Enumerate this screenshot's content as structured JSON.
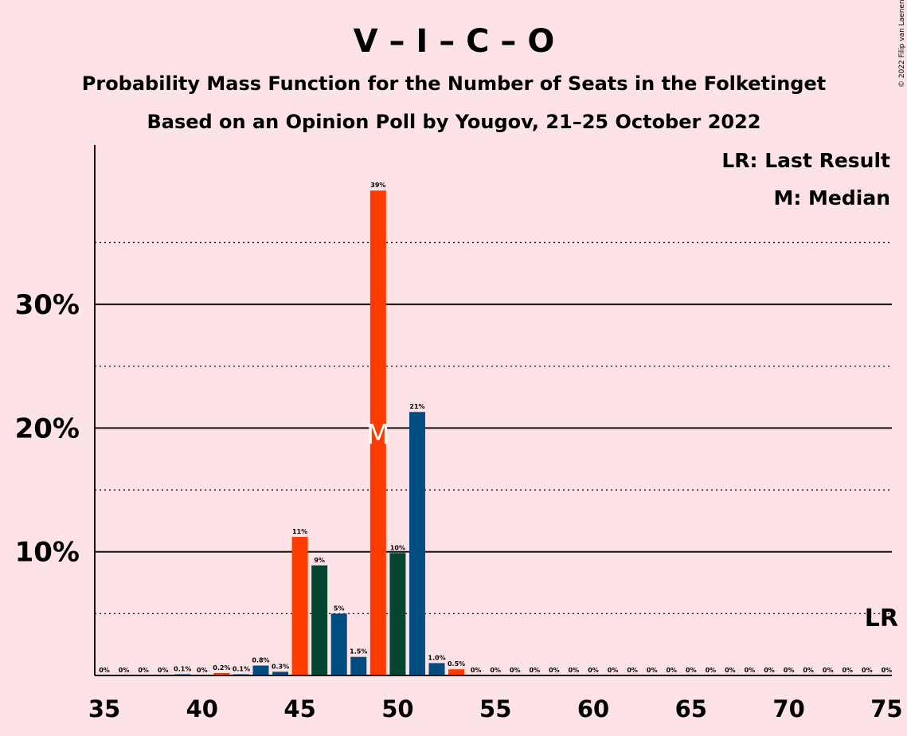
{
  "chart_data": {
    "type": "bar",
    "title": "V – I – C – O",
    "subtitle_1": "Probability Mass Function for the Number of Seats in the Folketinget",
    "subtitle_2": "Based on an Opinion Poll by Yougov, 21–25 October 2022",
    "copyright": "© 2022 Filip van Laenen",
    "legend": [
      "LR: Last Result",
      "M: Median"
    ],
    "legend_position": "top-right",
    "ylim": [
      0,
      42
    ],
    "y_ticks": [
      {
        "value": 10,
        "label": "10%"
      },
      {
        "value": 20,
        "label": "20%"
      },
      {
        "value": 30,
        "label": "30%"
      }
    ],
    "y_dotted_lines": [
      5,
      15,
      25,
      35
    ],
    "x_ticks": [
      35,
      40,
      45,
      50,
      55,
      60,
      65,
      70,
      75
    ],
    "xlim": [
      34.5,
      75.5
    ],
    "median": {
      "seat": 49,
      "label": "M",
      "y": 19.5
    },
    "last_result": {
      "seat": 75,
      "label": "LR"
    },
    "colors": {
      "red": "#ff3c00",
      "blue": "#004c80",
      "green": "#064532"
    },
    "bars": [
      {
        "seat": 35,
        "value": 0,
        "label": "0%",
        "color": "blue"
      },
      {
        "seat": 36,
        "value": 0,
        "label": "0%",
        "color": "blue"
      },
      {
        "seat": 37,
        "value": 0,
        "label": "0%",
        "color": "blue"
      },
      {
        "seat": 38,
        "value": 0,
        "label": "0%",
        "color": "blue"
      },
      {
        "seat": 39,
        "value": 0.1,
        "label": "0.1%",
        "color": "blue"
      },
      {
        "seat": 40,
        "value": 0,
        "label": "0%",
        "color": "blue"
      },
      {
        "seat": 41,
        "value": 0.2,
        "label": "0.2%",
        "color": "red"
      },
      {
        "seat": 42,
        "value": 0.1,
        "label": "0.1%",
        "color": "blue"
      },
      {
        "seat": 43,
        "value": 0.8,
        "label": "0.8%",
        "color": "blue"
      },
      {
        "seat": 44,
        "value": 0.3,
        "label": "0.3%",
        "color": "blue"
      },
      {
        "seat": 45,
        "value": 11.2,
        "label": "11%",
        "color": "red"
      },
      {
        "seat": 46,
        "value": 8.9,
        "label": "9%",
        "color": "green"
      },
      {
        "seat": 47,
        "value": 5.0,
        "label": "5%",
        "color": "blue"
      },
      {
        "seat": 48,
        "value": 1.5,
        "label": "1.5%",
        "color": "blue"
      },
      {
        "seat": 49,
        "value": 39.2,
        "label": "39%",
        "color": "red"
      },
      {
        "seat": 50,
        "value": 9.9,
        "label": "10%",
        "color": "green"
      },
      {
        "seat": 51,
        "value": 21.3,
        "label": "21%",
        "color": "blue"
      },
      {
        "seat": 52,
        "value": 1.0,
        "label": "1.0%",
        "color": "blue"
      },
      {
        "seat": 53,
        "value": 0.5,
        "label": "0.5%",
        "color": "red"
      },
      {
        "seat": 54,
        "value": 0,
        "label": "0%",
        "color": "blue"
      },
      {
        "seat": 55,
        "value": 0,
        "label": "0%",
        "color": "blue"
      },
      {
        "seat": 56,
        "value": 0,
        "label": "0%",
        "color": "blue"
      },
      {
        "seat": 57,
        "value": 0,
        "label": "0%",
        "color": "blue"
      },
      {
        "seat": 58,
        "value": 0,
        "label": "0%",
        "color": "blue"
      },
      {
        "seat": 59,
        "value": 0,
        "label": "0%",
        "color": "blue"
      },
      {
        "seat": 60,
        "value": 0,
        "label": "0%",
        "color": "blue"
      },
      {
        "seat": 61,
        "value": 0,
        "label": "0%",
        "color": "blue"
      },
      {
        "seat": 62,
        "value": 0,
        "label": "0%",
        "color": "blue"
      },
      {
        "seat": 63,
        "value": 0,
        "label": "0%",
        "color": "blue"
      },
      {
        "seat": 64,
        "value": 0,
        "label": "0%",
        "color": "blue"
      },
      {
        "seat": 65,
        "value": 0,
        "label": "0%",
        "color": "blue"
      },
      {
        "seat": 66,
        "value": 0,
        "label": "0%",
        "color": "blue"
      },
      {
        "seat": 67,
        "value": 0,
        "label": "0%",
        "color": "blue"
      },
      {
        "seat": 68,
        "value": 0,
        "label": "0%",
        "color": "blue"
      },
      {
        "seat": 69,
        "value": 0,
        "label": "0%",
        "color": "blue"
      },
      {
        "seat": 70,
        "value": 0,
        "label": "0%",
        "color": "blue"
      },
      {
        "seat": 71,
        "value": 0,
        "label": "0%",
        "color": "blue"
      },
      {
        "seat": 72,
        "value": 0,
        "label": "0%",
        "color": "blue"
      },
      {
        "seat": 73,
        "value": 0,
        "label": "0%",
        "color": "blue"
      },
      {
        "seat": 74,
        "value": 0,
        "label": "0%",
        "color": "blue"
      },
      {
        "seat": 75,
        "value": 0,
        "label": "0%",
        "color": "blue"
      }
    ]
  }
}
